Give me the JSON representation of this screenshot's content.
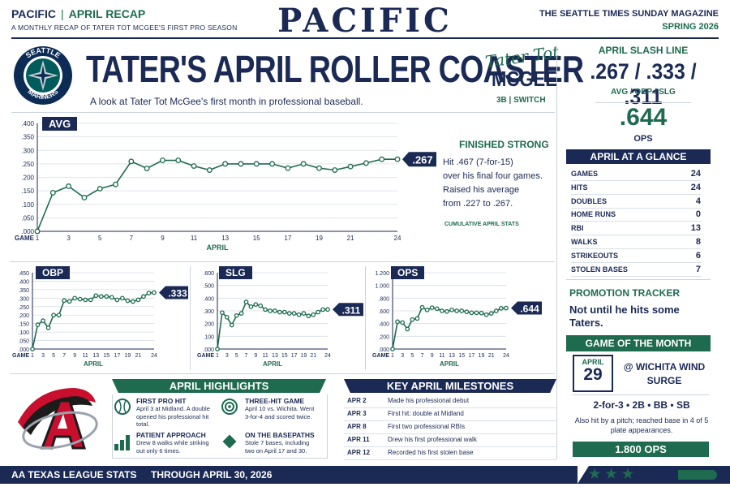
{
  "header": {
    "section": "PACIFIC",
    "recap": "APRIL RECAP",
    "tagline": "A MONTHLY RECAP OF TATER TOT MCGEE'S FIRST PRO SEASON",
    "masthead": "PACIFIC",
    "publication": "THE SEATTLE TIMES SUNDAY MAGAZINE",
    "season": "SPRING 2026"
  },
  "logo": {
    "text": "SEATTLE MARINERS",
    "colors": {
      "navy": "#0c2c56",
      "teal": "#005c5c",
      "silver": "#c4ced4"
    }
  },
  "title": "TATER'S APRIL ROLLER COASTER",
  "subtitle": "A look at Tater Tot McGee's first month in professional baseball.",
  "player": {
    "signature": "Tater Tot",
    "last_name": "MCGEE",
    "position": "3B | SWITCH"
  },
  "colors": {
    "navy": "#1b2a55",
    "green": "#1e6b4f"
  },
  "avg_callout": {
    "title": "FINISHED STRONG",
    "lines": [
      "Hit .467 (7-for-15)",
      "over his final four games.",
      "Raised his average",
      "from .227 to .267."
    ],
    "note": "CUMULATIVE APRIL STATS"
  },
  "chart_data": [
    {
      "type": "line",
      "label": "AVG",
      "end_label": ".267",
      "xlabel": "APRIL",
      "x_prefix": "GAME",
      "x": [
        1,
        2,
        3,
        4,
        5,
        6,
        7,
        8,
        9,
        10,
        11,
        12,
        13,
        14,
        15,
        16,
        17,
        18,
        19,
        20,
        21,
        22,
        23,
        24
      ],
      "xticks": [
        "1",
        "3",
        "5",
        "7",
        "9",
        "11",
        "13",
        "15",
        "17",
        "19",
        "21",
        "24"
      ],
      "yticks": [
        ".000",
        ".050",
        ".100",
        ".150",
        ".200",
        ".250",
        ".300",
        ".350",
        ".400"
      ],
      "ylim": [
        0,
        0.4
      ],
      "values": [
        0.0,
        0.143,
        0.167,
        0.125,
        0.158,
        0.174,
        0.259,
        0.233,
        0.263,
        0.263,
        0.242,
        0.227,
        0.25,
        0.25,
        0.25,
        0.25,
        0.234,
        0.25,
        0.234,
        0.227,
        0.24,
        0.253,
        0.267,
        0.267
      ]
    },
    {
      "type": "line",
      "label": "OBP",
      "end_label": ".333",
      "xlabel": "APRIL",
      "x_prefix": "GAME",
      "x": [
        1,
        2,
        3,
        4,
        5,
        6,
        7,
        8,
        9,
        10,
        11,
        12,
        13,
        14,
        15,
        16,
        17,
        18,
        19,
        20,
        21,
        22,
        23,
        24
      ],
      "xticks": [
        "1",
        "3",
        "5",
        "7",
        "9",
        "11",
        "13",
        "15",
        "17",
        "19",
        "21",
        "24"
      ],
      "yticks": [
        ".000",
        ".050",
        ".100",
        ".150",
        ".200",
        ".250",
        ".300",
        ".350",
        ".400",
        ".450"
      ],
      "ylim": [
        0,
        0.45
      ],
      "values": [
        0.0,
        0.143,
        0.167,
        0.125,
        0.2,
        0.2,
        0.286,
        0.281,
        0.3,
        0.294,
        0.29,
        0.29,
        0.315,
        0.31,
        0.31,
        0.305,
        0.29,
        0.3,
        0.285,
        0.28,
        0.29,
        0.31,
        0.33,
        0.333
      ]
    },
    {
      "type": "line",
      "label": "SLG",
      "end_label": ".311",
      "xlabel": "APRIL",
      "x_prefix": "GAME",
      "x": [
        1,
        2,
        3,
        4,
        5,
        6,
        7,
        8,
        9,
        10,
        11,
        12,
        13,
        14,
        15,
        16,
        17,
        18,
        19,
        20,
        21,
        22,
        23,
        24
      ],
      "xticks": [
        "1",
        "3",
        "5",
        "7",
        "9",
        "11",
        "13",
        "15",
        "17",
        "19",
        "21",
        "24"
      ],
      "yticks": [
        ".000",
        ".100",
        ".200",
        ".300",
        ".400",
        ".500",
        ".600"
      ],
      "ylim": [
        0,
        0.6
      ],
      "values": [
        0.0,
        0.286,
        0.25,
        0.188,
        0.263,
        0.28,
        0.37,
        0.333,
        0.35,
        0.34,
        0.31,
        0.3,
        0.3,
        0.29,
        0.29,
        0.28,
        0.28,
        0.27,
        0.28,
        0.26,
        0.27,
        0.29,
        0.31,
        0.311
      ]
    },
    {
      "type": "line",
      "label": "OPS",
      "end_label": ".644",
      "xlabel": "APRIL",
      "x_prefix": "GAME",
      "x": [
        1,
        2,
        3,
        4,
        5,
        6,
        7,
        8,
        9,
        10,
        11,
        12,
        13,
        14,
        15,
        16,
        17,
        18,
        19,
        20,
        21,
        22,
        23,
        24
      ],
      "xticks": [
        "1",
        "3",
        "5",
        "7",
        "9",
        "11",
        "13",
        "15",
        "17",
        "19",
        "21",
        "24"
      ],
      "yticks": [
        ".000",
        ".200",
        ".400",
        ".600",
        ".800",
        "1.000",
        "1.200"
      ],
      "ylim": [
        0,
        1.2
      ],
      "values": [
        0.0,
        0.429,
        0.417,
        0.313,
        0.463,
        0.48,
        0.656,
        0.614,
        0.65,
        0.634,
        0.6,
        0.59,
        0.615,
        0.6,
        0.6,
        0.585,
        0.57,
        0.57,
        0.565,
        0.54,
        0.56,
        0.6,
        0.64,
        0.644
      ]
    }
  ],
  "slash_line": {
    "title": "APRIL SLASH LINE",
    "value": ".267 / .333 / .311",
    "labels": "AVG / OBP / SLG",
    "ops": ".644",
    "ops_label": "OPS"
  },
  "glance": {
    "title": "APRIL AT A GLANCE",
    "rows": [
      {
        "label": "GAMES",
        "value": "24"
      },
      {
        "label": "HITS",
        "value": "24"
      },
      {
        "label": "DOUBLES",
        "value": "4"
      },
      {
        "label": "HOME RUNS",
        "value": "0"
      },
      {
        "label": "RBI",
        "value": "13"
      },
      {
        "label": "WALKS",
        "value": "8"
      },
      {
        "label": "STRIKEOUTS",
        "value": "6"
      },
      {
        "label": "STOLEN BASES",
        "value": "7"
      }
    ]
  },
  "promotion": {
    "title": "PROMOTION TRACKER",
    "text": "Not until he hits some Taters."
  },
  "game_of_month": {
    "title": "GAME OF THE MONTH",
    "month": "APRIL",
    "day": "29",
    "opponent": "@ WICHITA WIND SURGE",
    "line": "2-for-3 • 2B • BB • SB",
    "note": "Also hit by a pitch; reached base in 4 of 5 plate appearances.",
    "ops": "1.800 OPS"
  },
  "highlights": {
    "title": "APRIL HIGHLIGHTS",
    "items": [
      {
        "icon": "baseball-icon",
        "title": "FIRST PRO HIT",
        "text": "April 3 at Midland. A double opened his professional hit total."
      },
      {
        "icon": "target-icon",
        "title": "THREE-HIT GAME",
        "text": "April 10 vs. Wichita. Went 3-for-4 and scored twice."
      },
      {
        "icon": "bar-chart-icon",
        "title": "PATIENT APPROACH",
        "text": "Drew 8 walks while striking out only 6 times."
      },
      {
        "icon": "base-icon",
        "title": "ON THE BASEPATHS",
        "text": "Stole 7 bases, including two on April 17 and 30."
      }
    ]
  },
  "milestones": {
    "title": "KEY APRIL MILESTONES",
    "rows": [
      {
        "date": "APR 2",
        "text": "Made his professional debut"
      },
      {
        "date": "APR 3",
        "text": "First hit: double at Midland"
      },
      {
        "date": "APR 8",
        "text": "First two professional RBIs"
      },
      {
        "date": "APR 11",
        "text": "Drew his first professional walk"
      },
      {
        "date": "APR 12",
        "text": "Recorded his first stolen base"
      }
    ]
  },
  "footer": {
    "league": "AA TEXAS LEAGUE STATS",
    "through": "THROUGH APRIL 30, 2026",
    "stars": "★★★"
  }
}
